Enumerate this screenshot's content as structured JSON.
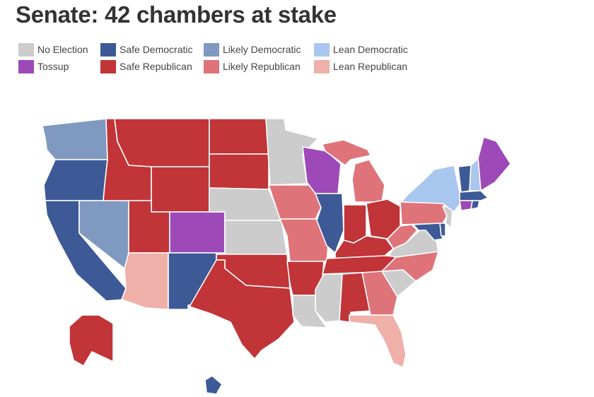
{
  "title": "Senate: 42 chambers at stake",
  "colors": {
    "no_election": "#cccccc",
    "safe_dem": "#3d5a96",
    "likely_dem": "#8099c0",
    "lean_dem": "#a9c6ee",
    "tossup": "#9e49b8",
    "safe_rep": "#c13437",
    "likely_rep": "#df737a",
    "lean_rep": "#efb0aa"
  },
  "legend": [
    {
      "label": "No Election",
      "category": "no_election"
    },
    {
      "label": "Safe Democratic",
      "category": "safe_dem"
    },
    {
      "label": "Likely Democratic",
      "category": "likely_dem"
    },
    {
      "label": "Lean Democratic",
      "category": "lean_dem"
    },
    {
      "label": "Tossup",
      "category": "tossup"
    },
    {
      "label": "Safe Republican",
      "category": "safe_rep"
    },
    {
      "label": "Likely Republican",
      "category": "likely_rep"
    },
    {
      "label": "Lean Republican",
      "category": "lean_rep"
    }
  ],
  "states": {
    "WA": "likely_dem",
    "OR": "safe_dem",
    "CA": "safe_dem",
    "NV": "likely_dem",
    "ID": "safe_rep",
    "MT": "safe_rep",
    "WY": "safe_rep",
    "UT": "safe_rep",
    "AZ": "lean_rep",
    "CO": "tossup",
    "NM": "safe_dem",
    "ND": "safe_rep",
    "SD": "safe_rep",
    "NE": "no_election",
    "KS": "no_election",
    "OK": "safe_rep",
    "TX": "safe_rep",
    "MN": "no_election",
    "IA": "likely_rep",
    "MO": "likely_rep",
    "AR": "safe_rep",
    "LA": "no_election",
    "WI": "tossup",
    "IL": "safe_dem",
    "MI": "likely_rep",
    "IN": "safe_rep",
    "OH": "safe_rep",
    "KY": "safe_rep",
    "TN": "safe_rep",
    "MS": "no_election",
    "AL": "safe_rep",
    "GA": "likely_rep",
    "FL": "lean_rep",
    "SC": "no_election",
    "NC": "likely_rep",
    "VA": "no_election",
    "WV": "likely_rep",
    "PA": "likely_rep",
    "NY": "lean_dem",
    "VT": "safe_dem",
    "NH": "lean_dem",
    "ME": "tossup",
    "MA": "safe_dem",
    "RI": "safe_dem",
    "CT": "tossup",
    "NJ": "no_election",
    "DE": "safe_dem",
    "MD": "safe_dem",
    "AK": "safe_rep",
    "HI": "safe_dem"
  }
}
